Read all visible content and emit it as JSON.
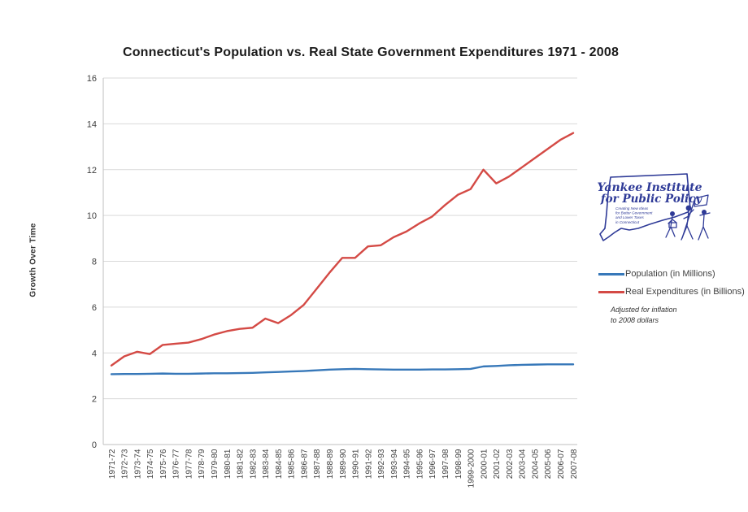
{
  "chart_data": {
    "type": "line",
    "title": "Connecticut's Population vs. Real State Government Expenditures 1971 - 2008",
    "ylabel": "Growth Over Time",
    "xlabel": "",
    "ylim": [
      0,
      16
    ],
    "ytick_step": 2,
    "grid": true,
    "legend_position": "right",
    "categories": [
      "1971-72",
      "1972-73",
      "1973-74",
      "1974-75",
      "1975-76",
      "1976-77",
      "1977-78",
      "1978-79",
      "1979-80",
      "1980-81",
      "1981-82",
      "1982-83",
      "1983-84",
      "1984-85",
      "1985-86",
      "1986-87",
      "1987-88",
      "1988-89",
      "1989-90",
      "1990-91",
      "1991-92",
      "1992-93",
      "1993-94",
      "1994-95",
      "1995-96",
      "1996-97",
      "1997-98",
      "1998-99",
      "1999-2000",
      "2000-01",
      "2001-02",
      "2002-03",
      "2003-04",
      "2004-05",
      "2005-06",
      "2006-07",
      "2007-08"
    ],
    "series": [
      {
        "name": "Population (in Millions)",
        "color": "#3778B9",
        "values": [
          3.07,
          3.08,
          3.08,
          3.09,
          3.1,
          3.09,
          3.09,
          3.1,
          3.11,
          3.11,
          3.12,
          3.13,
          3.15,
          3.17,
          3.19,
          3.21,
          3.24,
          3.27,
          3.29,
          3.3,
          3.29,
          3.28,
          3.27,
          3.27,
          3.27,
          3.28,
          3.28,
          3.29,
          3.3,
          3.41,
          3.43,
          3.46,
          3.48,
          3.49,
          3.5,
          3.5,
          3.5
        ]
      },
      {
        "name": "Real Expenditures (in Billions)",
        "color": "#D44A45",
        "values": [
          3.45,
          3.85,
          4.05,
          3.95,
          4.35,
          4.4,
          4.45,
          4.6,
          4.8,
          4.95,
          5.05,
          5.1,
          5.5,
          5.3,
          5.65,
          6.1,
          6.8,
          7.5,
          8.15,
          8.15,
          8.65,
          8.7,
          9.05,
          9.3,
          9.65,
          9.95,
          10.45,
          10.9,
          11.15,
          12.0,
          11.4,
          11.7,
          12.1,
          12.5,
          12.9,
          13.3,
          13.6
        ]
      }
    ],
    "note_lines": [
      "Adjusted for inflation",
      "to 2008 dollars"
    ]
  },
  "logo": {
    "line1": "Yankee Institute",
    "line2": "for Public Policy",
    "tagline": [
      "Creating New Ideas",
      "for Better Government",
      "and Lower Taxes",
      "in Connecticut"
    ],
    "color": "#2E3A97"
  },
  "colors": {
    "grid": "#D9D9D9",
    "axis": "#BFBFBF",
    "tick_text": "#3F3F3F"
  }
}
